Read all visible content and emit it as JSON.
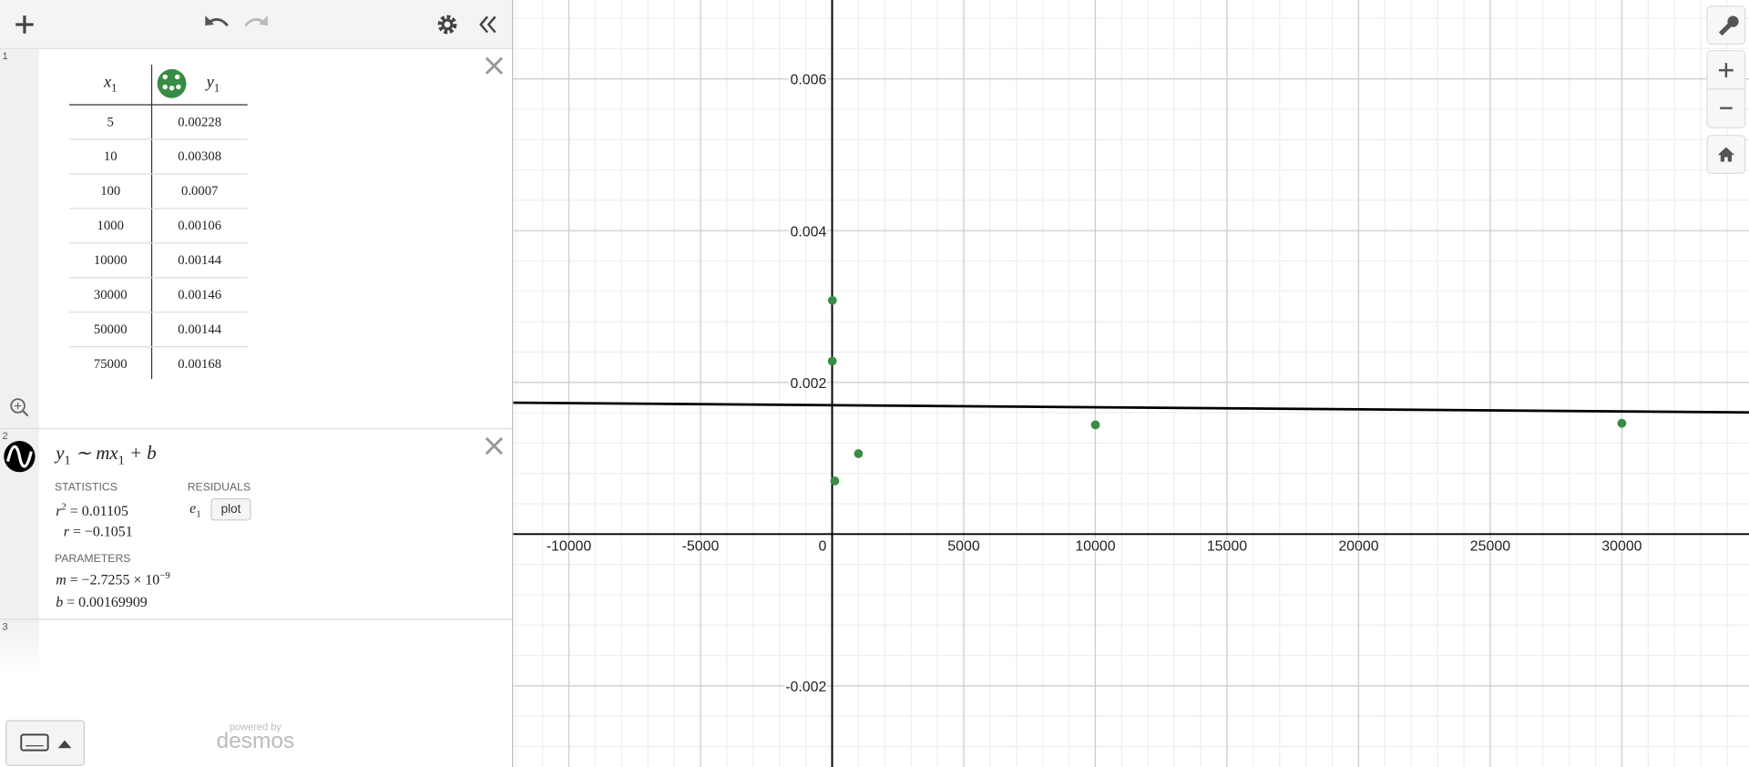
{
  "expressions": [
    {
      "index": "1",
      "table": {
        "headers": [
          {
            "base": "x",
            "sub": "1"
          },
          {
            "base": "y",
            "sub": "1"
          }
        ],
        "rows": [
          [
            5,
            0.00228
          ],
          [
            10,
            0.00308
          ],
          [
            100,
            0.0007
          ],
          [
            1000,
            0.00106
          ],
          [
            10000,
            0.00144
          ],
          [
            30000,
            0.00146
          ],
          [
            50000,
            0.00144
          ],
          [
            75000,
            0.00168
          ]
        ]
      }
    },
    {
      "index": "2",
      "regression": {
        "formula": [
          {
            "text": "y"
          },
          {
            "sub": "1"
          },
          {
            "text": " ∼ mx"
          },
          {
            "sub": "1"
          },
          {
            "text": " + b"
          }
        ],
        "statistics": {
          "heading": "STATISTICS",
          "r2": {
            "lhs": "r",
            "sup": "2",
            "rhs": " = 0.01105"
          },
          "r": {
            "lhs": "r",
            "rhs": " = −0.1051"
          }
        },
        "residuals": {
          "heading": "RESIDUALS",
          "symbol": "e",
          "sub": "1",
          "button": "plot"
        },
        "parameters": {
          "heading": "PARAMETERS",
          "m": {
            "lhs": "m",
            "rhs": " = −2.7255 × 10",
            "sup": "−9",
            "value": -2.7255e-09
          },
          "b": {
            "lhs": "b",
            "rhs": " = 0.00169909",
            "value": 0.00169909
          }
        }
      }
    },
    {
      "index": "3"
    }
  ],
  "footer": {
    "powered": "powered by",
    "brand": "desmos"
  },
  "graph": {
    "xlim": [
      -12119,
      34830
    ],
    "ylim": [
      -0.00307,
      0.00704
    ],
    "xticks": [
      -10000,
      -5000,
      0,
      5000,
      10000,
      15000,
      20000,
      25000,
      30000
    ],
    "yticks": [
      -0.002,
      0.002,
      0.004,
      0.006
    ],
    "point_color": "#388c46",
    "line_color": "#000000",
    "minor_grid": true
  }
}
